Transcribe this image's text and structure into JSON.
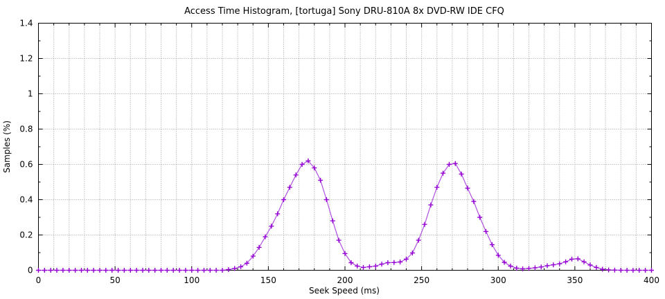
{
  "page": {
    "background": "#ffffff"
  },
  "chart_data": {
    "type": "line",
    "title": "Access Time Histogram, [tortuga] Sony DRU-810A 8x DVD-RW IDE CFQ",
    "xlabel": "Seek Speed (ms)",
    "ylabel": "Samples (%)",
    "xlim": [
      0,
      400
    ],
    "ylim": [
      0,
      1.4
    ],
    "x_major_ticks": [
      0,
      50,
      100,
      150,
      200,
      250,
      300,
      350,
      400
    ],
    "x_tick_labels": [
      "0",
      "50",
      "100",
      "150",
      "200",
      "250",
      "300",
      "350",
      "400"
    ],
    "x_minor_step": 10,
    "x_major_step": 50,
    "y_major_ticks": [
      0,
      0.2,
      0.4,
      0.6,
      0.8,
      1,
      1.2,
      1.4
    ],
    "y_tick_labels": [
      "0",
      "0.2",
      "0.4",
      "0.6",
      "0.8",
      "1",
      "1.2",
      "1.4"
    ],
    "y_minor_step": 0.1,
    "y_major_step": 0.2,
    "grid": "dotted gridlines at every 10 ms vertically and every 0.2 horizontally",
    "grid_color": "#9a9a9a",
    "axis_color": "#000000",
    "legend": "none",
    "series": [
      {
        "name": "seek-time-samples",
        "style": "linespoints",
        "marker": "plus",
        "line_color": "#b050e0",
        "marker_color": "#9400d3",
        "points": [
          [
            0,
            0
          ],
          [
            4,
            0
          ],
          [
            8,
            0
          ],
          [
            12,
            0
          ],
          [
            16,
            0
          ],
          [
            20,
            0
          ],
          [
            24,
            0
          ],
          [
            28,
            0
          ],
          [
            32,
            0
          ],
          [
            36,
            0
          ],
          [
            40,
            0
          ],
          [
            44,
            0
          ],
          [
            48,
            0
          ],
          [
            52,
            0
          ],
          [
            56,
            0
          ],
          [
            60,
            0
          ],
          [
            64,
            0
          ],
          [
            68,
            0
          ],
          [
            72,
            0
          ],
          [
            76,
            0
          ],
          [
            80,
            0
          ],
          [
            84,
            0
          ],
          [
            88,
            0
          ],
          [
            92,
            0
          ],
          [
            96,
            0
          ],
          [
            100,
            0
          ],
          [
            104,
            0
          ],
          [
            108,
            0
          ],
          [
            112,
            0
          ],
          [
            116,
            0
          ],
          [
            120,
            0
          ],
          [
            124,
            0.004
          ],
          [
            128,
            0.01
          ],
          [
            132,
            0.02
          ],
          [
            136,
            0.04
          ],
          [
            140,
            0.08
          ],
          [
            144,
            0.13
          ],
          [
            148,
            0.19
          ],
          [
            152,
            0.25
          ],
          [
            156,
            0.32
          ],
          [
            160,
            0.4
          ],
          [
            164,
            0.47
          ],
          [
            168,
            0.54
          ],
          [
            172,
            0.6
          ],
          [
            176,
            0.62
          ],
          [
            180,
            0.58
          ],
          [
            184,
            0.51
          ],
          [
            188,
            0.4
          ],
          [
            192,
            0.28
          ],
          [
            196,
            0.17
          ],
          [
            200,
            0.095
          ],
          [
            204,
            0.043
          ],
          [
            208,
            0.024
          ],
          [
            212,
            0.016
          ],
          [
            216,
            0.02
          ],
          [
            220,
            0.024
          ],
          [
            224,
            0.035
          ],
          [
            228,
            0.043
          ],
          [
            232,
            0.044
          ],
          [
            236,
            0.047
          ],
          [
            240,
            0.063
          ],
          [
            244,
            0.098
          ],
          [
            248,
            0.17
          ],
          [
            252,
            0.26
          ],
          [
            256,
            0.37
          ],
          [
            260,
            0.47
          ],
          [
            264,
            0.55
          ],
          [
            268,
            0.6
          ],
          [
            272,
            0.605
          ],
          [
            276,
            0.545
          ],
          [
            280,
            0.465
          ],
          [
            284,
            0.39
          ],
          [
            288,
            0.3
          ],
          [
            292,
            0.22
          ],
          [
            296,
            0.145
          ],
          [
            300,
            0.085
          ],
          [
            304,
            0.045
          ],
          [
            308,
            0.024
          ],
          [
            312,
            0.012
          ],
          [
            316,
            0.008
          ],
          [
            320,
            0.011
          ],
          [
            324,
            0.014
          ],
          [
            328,
            0.019
          ],
          [
            332,
            0.026
          ],
          [
            336,
            0.031
          ],
          [
            340,
            0.037
          ],
          [
            344,
            0.048
          ],
          [
            348,
            0.063
          ],
          [
            352,
            0.065
          ],
          [
            356,
            0.048
          ],
          [
            360,
            0.03
          ],
          [
            364,
            0.016
          ],
          [
            368,
            0.006
          ],
          [
            372,
            0.002
          ],
          [
            376,
            0.001
          ],
          [
            380,
            0
          ],
          [
            384,
            0
          ],
          [
            388,
            0
          ],
          [
            392,
            0
          ],
          [
            396,
            0
          ],
          [
            400,
            0
          ]
        ]
      }
    ]
  }
}
